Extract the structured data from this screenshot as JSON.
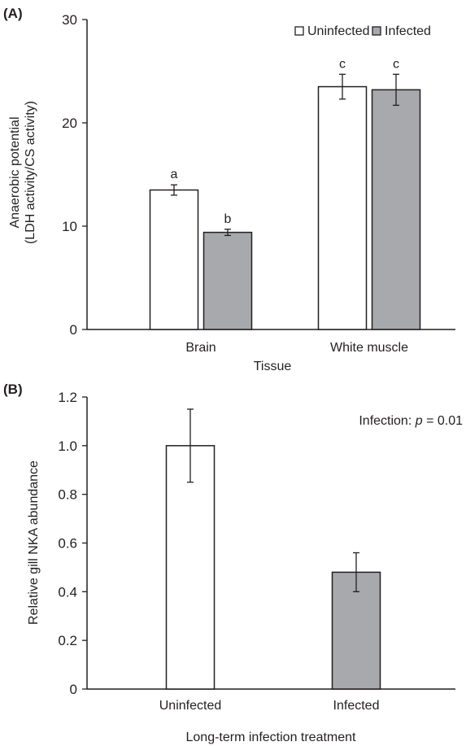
{
  "colors": {
    "uninfected": "#ffffff",
    "infected": "#a7a9ac",
    "stroke": "#231f20",
    "text": "#231f20"
  },
  "chart_data": [
    {
      "type": "bar",
      "panel_label": "(A)",
      "xlabel": "Tissue",
      "ylabel_lines": [
        "Anaerobic potential",
        "(LDH activity/CS activity)"
      ],
      "ylim": [
        0,
        30
      ],
      "yticks": [
        0,
        10,
        20,
        30
      ],
      "categories": [
        "Brain",
        "White muscle"
      ],
      "series": [
        {
          "name": "Uninfected",
          "values": [
            13.5,
            23.5
          ],
          "errors": [
            0.5,
            1.2
          ],
          "letters": [
            "a",
            "c"
          ],
          "color": "#ffffff"
        },
        {
          "name": "Infected",
          "values": [
            9.4,
            23.2
          ],
          "errors": [
            0.3,
            1.5
          ],
          "letters": [
            "b",
            "c"
          ],
          "color": "#a7a9ac"
        }
      ],
      "legend": {
        "position": "top-right",
        "entries": [
          "Uninfected",
          "Infected"
        ]
      },
      "grid": false
    },
    {
      "type": "bar",
      "panel_label": "(B)",
      "xlabel": "Long-term infection treatment",
      "ylabel": "Relative gill NKA abundance",
      "ylim": [
        0,
        1.2
      ],
      "yticks": [
        "0",
        "0.2",
        "0.4",
        "0.6",
        "0.8",
        "1.0",
        "1.2"
      ],
      "categories": [
        "Uninfected",
        "Infected"
      ],
      "values": [
        1.0,
        0.48
      ],
      "errors": [
        0.15,
        0.08
      ],
      "colors": [
        "#ffffff",
        "#a7a9ac"
      ],
      "annotation": {
        "prefix": "Infection: ",
        "italic": "p",
        "suffix": " = 0.01"
      },
      "grid": false
    }
  ]
}
